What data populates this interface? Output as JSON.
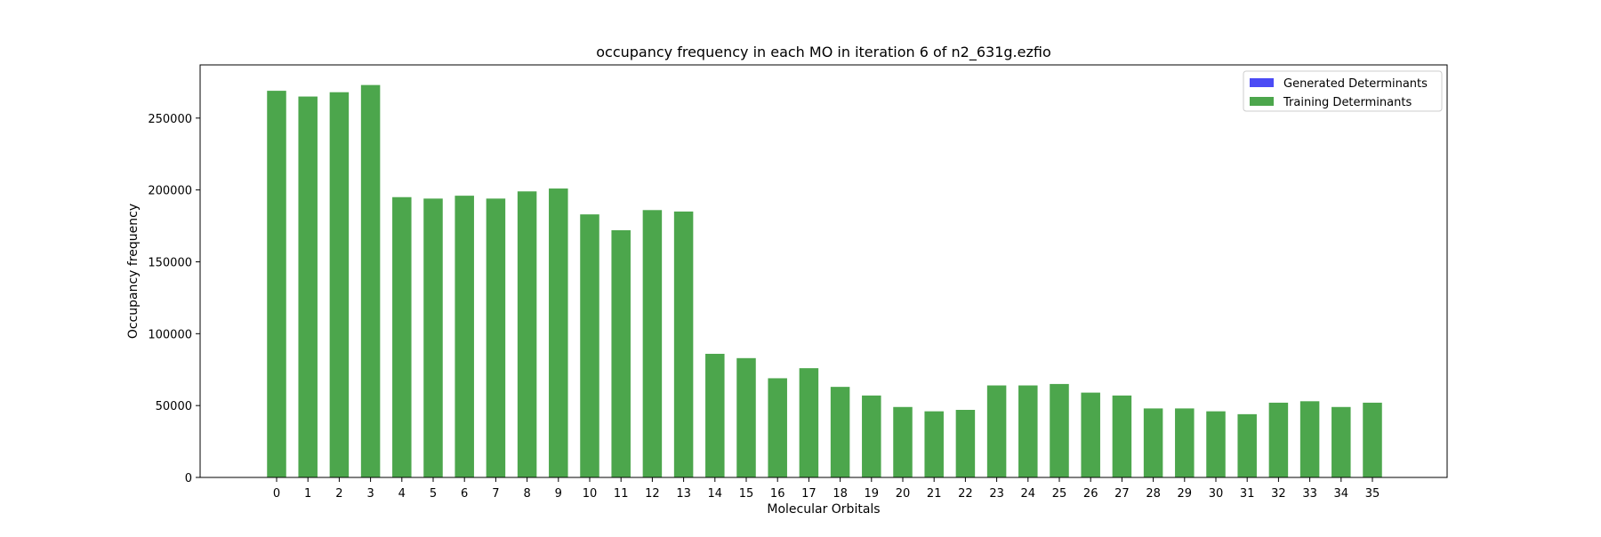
{
  "chart_data": {
    "type": "bar",
    "title": "occupancy frequency in each MO in iteration 6 of n2_631g.ezfio",
    "xlabel": "Molecular Orbitals",
    "ylabel": "Occupancy frequency",
    "categories": [
      "0",
      "1",
      "2",
      "3",
      "4",
      "5",
      "6",
      "7",
      "8",
      "9",
      "10",
      "11",
      "12",
      "13",
      "14",
      "15",
      "16",
      "17",
      "18",
      "19",
      "20",
      "21",
      "22",
      "23",
      "24",
      "25",
      "26",
      "27",
      "28",
      "29",
      "30",
      "31",
      "32",
      "33",
      "34",
      "35"
    ],
    "series": [
      {
        "name": "Generated Determinants",
        "color": "#4b4bf5",
        "values": [
          0,
          0,
          0,
          0,
          0,
          0,
          0,
          0,
          0,
          0,
          0,
          0,
          0,
          0,
          0,
          0,
          0,
          0,
          0,
          0,
          0,
          0,
          0,
          0,
          0,
          0,
          0,
          0,
          0,
          0,
          0,
          0,
          0,
          0,
          0,
          0
        ]
      },
      {
        "name": "Training Determinants",
        "color": "#4ca64c",
        "values": [
          269000,
          265000,
          268000,
          273000,
          195000,
          194000,
          196000,
          194000,
          199000,
          201000,
          183000,
          172000,
          186000,
          185000,
          86000,
          83000,
          69000,
          76000,
          63000,
          57000,
          49000,
          46000,
          47000,
          64000,
          64000,
          65000,
          59000,
          57000,
          48000,
          48000,
          46000,
          44000,
          52000,
          53000,
          49000,
          52000
        ]
      }
    ],
    "yticks": [
      "0",
      "50000",
      "100000",
      "150000",
      "200000",
      "250000"
    ],
    "ylim": [
      0,
      287000
    ],
    "grid": false,
    "legend_position": "top-right"
  }
}
